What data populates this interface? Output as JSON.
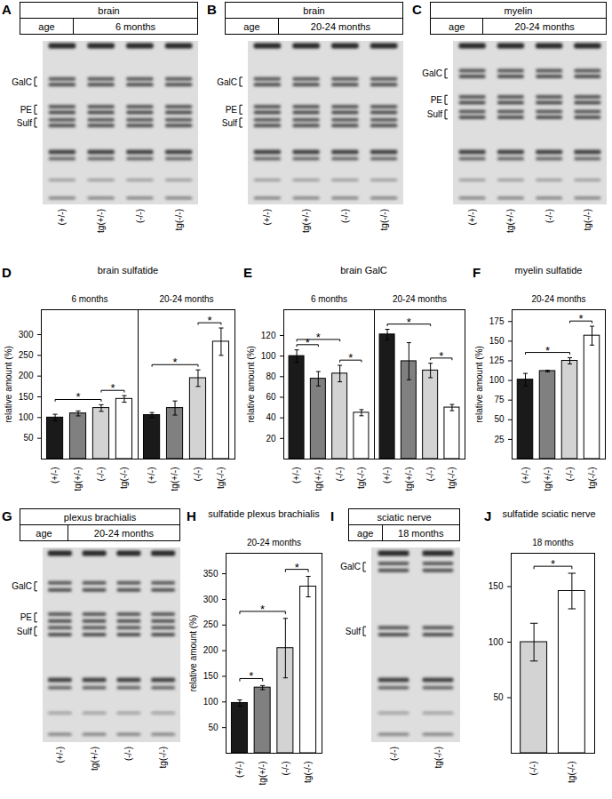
{
  "chart_data": [
    {
      "panel": "D",
      "type": "bar",
      "title": "brain sulfatide",
      "y_label": "relative amount (%)",
      "categories": [
        "(+/-)",
        "tg(+/-)",
        "(-/-)",
        "tg(-/-)"
      ],
      "colors": [
        "#1a1a1a",
        "#808080",
        "#d3d3d3",
        "#ffffff"
      ],
      "series": [
        {
          "name": "6 months",
          "values": [
            100,
            110,
            123,
            145
          ],
          "errors": [
            8,
            6,
            8,
            8
          ],
          "significance": [
            {
              "from": "(+/-)",
              "to": "(-/-)",
              "label": "*"
            },
            {
              "from": "(-/-)",
              "to": "tg(-/-)",
              "label": "*"
            }
          ]
        },
        {
          "name": "20-24 months",
          "values": [
            106,
            123,
            195,
            283
          ],
          "errors": [
            6,
            17,
            20,
            33
          ],
          "significance": [
            {
              "from": "(+/-)",
              "to": "(-/-)",
              "label": "*"
            },
            {
              "from": "(-/-)",
              "to": "tg(-/-)",
              "label": "*"
            }
          ]
        }
      ],
      "ylim": [
        0,
        360
      ],
      "yticks": [
        50,
        100,
        150,
        200,
        250,
        300
      ]
    },
    {
      "panel": "E",
      "type": "bar",
      "title": "brain GalC",
      "y_label": "relative amount (%)",
      "categories": [
        "(+/-)",
        "tg(+/-)",
        "(-/-)",
        "tg(-/-)"
      ],
      "colors": [
        "#1a1a1a",
        "#808080",
        "#d3d3d3",
        "#ffffff"
      ],
      "series": [
        {
          "name": "6 months",
          "values": [
            100,
            78,
            83,
            45
          ],
          "errors": [
            6,
            7,
            8,
            3
          ],
          "significance": [
            {
              "from": "(+/-)",
              "to": "tg(+/-)",
              "label": "*"
            },
            {
              "from": "(+/-)",
              "to": "(-/-)",
              "label": "*"
            },
            {
              "from": "(-/-)",
              "to": "tg(-/-)",
              "label": "*"
            }
          ]
        },
        {
          "name": "20-24 months",
          "values": [
            121,
            95,
            86,
            50
          ],
          "errors": [
            5,
            18,
            7,
            3
          ],
          "significance": [
            {
              "from": "(+/-)",
              "to": "(-/-)",
              "label": "*"
            },
            {
              "from": "(-/-)",
              "to": "tg(-/-)",
              "label": "*"
            }
          ]
        }
      ],
      "ylim": [
        0,
        145
      ],
      "yticks": [
        20,
        40,
        60,
        80,
        100,
        120
      ]
    },
    {
      "panel": "F",
      "type": "bar",
      "title": "myelin sulfatide",
      "y_label": "relative amount (%)",
      "categories": [
        "(+/-)",
        "tg(+/-)",
        "(-/-)",
        "tg(-/-)"
      ],
      "colors": [
        "#1a1a1a",
        "#808080",
        "#d3d3d3",
        "#ffffff"
      ],
      "series": [
        {
          "name": "20-24 months",
          "values": [
            101,
            112,
            125,
            157
          ],
          "errors": [
            8,
            1,
            4,
            12
          ],
          "significance": [
            {
              "from": "(+/-)",
              "to": "(-/-)",
              "label": "*"
            },
            {
              "from": "(-/-)",
              "to": "tg(-/-)",
              "label": "*"
            }
          ]
        }
      ],
      "ylim": [
        0,
        190
      ],
      "yticks": [
        25,
        50,
        75,
        100,
        125,
        150,
        175
      ]
    },
    {
      "panel": "H",
      "type": "bar",
      "title": "sulfatide plexus brachialis",
      "y_label": "relative amount (%)",
      "categories": [
        "(+/-)",
        "tg(+/-)",
        "(-/-)",
        "tg(-/-)"
      ],
      "colors": [
        "#1a1a1a",
        "#808080",
        "#d3d3d3",
        "#ffffff"
      ],
      "series": [
        {
          "name": "20-24 months",
          "values": [
            98,
            128,
            205,
            325
          ],
          "errors": [
            6,
            4,
            58,
            20
          ],
          "significance": [
            {
              "from": "(+/-)",
              "to": "tg(+/-)",
              "label": "*"
            },
            {
              "from": "(+/-)",
              "to": "(-/-)",
              "label": "*"
            },
            {
              "from": "(-/-)",
              "to": "tg(-/-)",
              "label": "*"
            }
          ]
        }
      ],
      "ylim": [
        0,
        390
      ],
      "yticks": [
        50,
        100,
        150,
        200,
        250,
        300,
        350
      ]
    },
    {
      "panel": "J",
      "type": "bar",
      "title": "sulfatide sciatic nerve",
      "categories": [
        "(-/-)",
        "tg(-/-)"
      ],
      "colors": [
        "#d3d3d3",
        "#ffffff"
      ],
      "series": [
        {
          "name": "18 months",
          "values": [
            100,
            146
          ],
          "errors": [
            17,
            16
          ],
          "significance": [
            {
              "from": "(-/-)",
              "to": "tg(-/-)",
              "label": "*"
            }
          ]
        }
      ],
      "ylim": [
        0,
        180
      ],
      "yticks": [
        50,
        100,
        150
      ]
    }
  ],
  "blots": [
    {
      "panel": "A",
      "tissue": "brain",
      "age_label": "age",
      "age": "6 months",
      "bands": [
        "GalC",
        "PE",
        "Sulf"
      ],
      "lanes": [
        "(+/-)",
        "tg(+/-)",
        "(-/-)",
        "tg(-/-)"
      ]
    },
    {
      "panel": "B",
      "tissue": "brain",
      "age_label": "age",
      "age": "20-24 months",
      "bands": [
        "GalC",
        "PE",
        "Sulf"
      ],
      "lanes": [
        "(+/-)",
        "tg(+/-)",
        "(-/-)",
        "tg(-/-)"
      ]
    },
    {
      "panel": "C",
      "tissue": "myelin",
      "age_label": "age",
      "age": "20-24 months",
      "bands": [
        "GalC",
        "PE",
        "Sulf"
      ],
      "lanes": [
        "(+/-)",
        "tg(+/-)",
        "(-/-)",
        "tg(-/-)"
      ]
    },
    {
      "panel": "G",
      "tissue": "plexus brachialis",
      "age_label": "age",
      "age": "20-24 months",
      "bands": [
        "GalC",
        "PE",
        "Sulf"
      ],
      "lanes": [
        "(+/-)",
        "tg(+/-)",
        "(-/-)",
        "tg(-/-)"
      ]
    },
    {
      "panel": "I",
      "tissue": "sciatic nerve",
      "age_label": "age",
      "age": "18 months",
      "bands": [
        "GalC",
        "Sulf"
      ],
      "lanes": [
        "(-/-)",
        "tg(-/-)"
      ]
    }
  ]
}
